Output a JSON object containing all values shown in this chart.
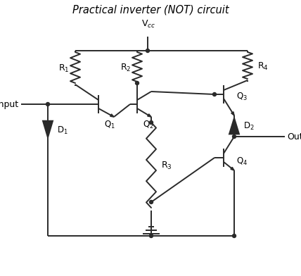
{
  "title": "Practical inverter (NOT) circuit",
  "bg_color": "#ffffff",
  "line_color": "#2a2a2a",
  "text_color": "#000000"
}
